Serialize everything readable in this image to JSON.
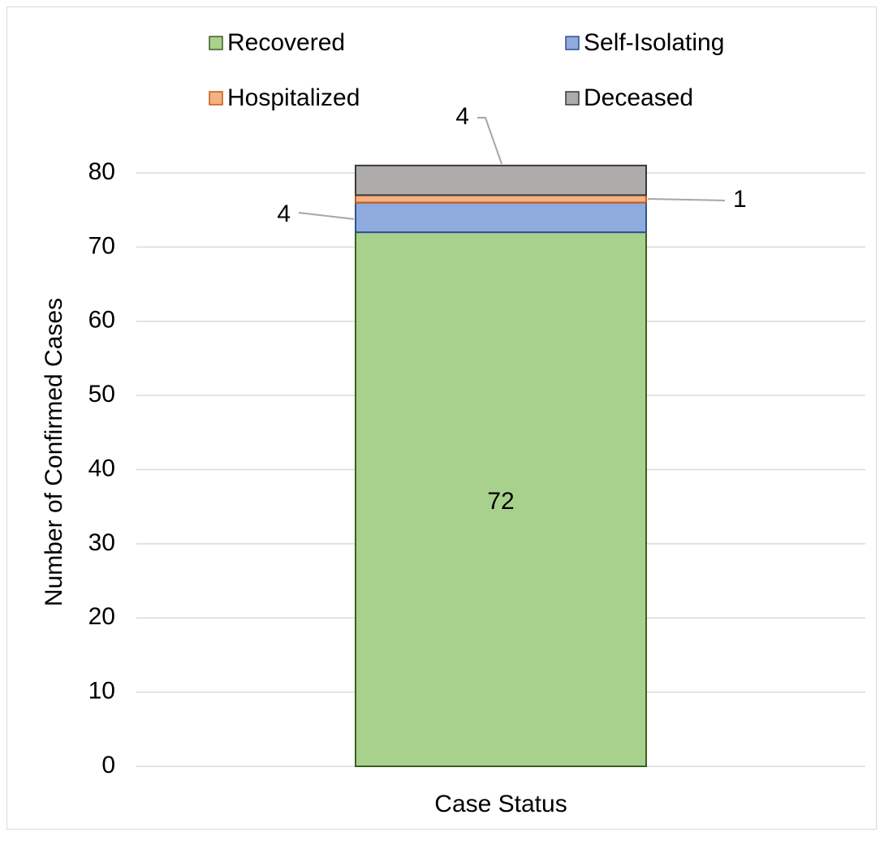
{
  "chart_data": {
    "type": "stacked-bar",
    "categories": [
      "Case Status"
    ],
    "y_label": "Number of Confirmed Cases",
    "series": [
      {
        "name": "Recovered",
        "color": "#a9d18e",
        "values": [
          72
        ]
      },
      {
        "name": "Self-Isolating",
        "color": "#8faadc",
        "values": [
          4
        ]
      },
      {
        "name": "Hospitalized",
        "color": "#f4b183",
        "values": [
          1
        ]
      },
      {
        "name": "Deceased",
        "color": "#aeabab",
        "values": [
          4
        ]
      }
    ],
    "ylim": [
      0,
      80
    ],
    "yticks": [
      0,
      10,
      20,
      30,
      40,
      50,
      60,
      70,
      80
    ],
    "grid": true,
    "legend": "top"
  }
}
